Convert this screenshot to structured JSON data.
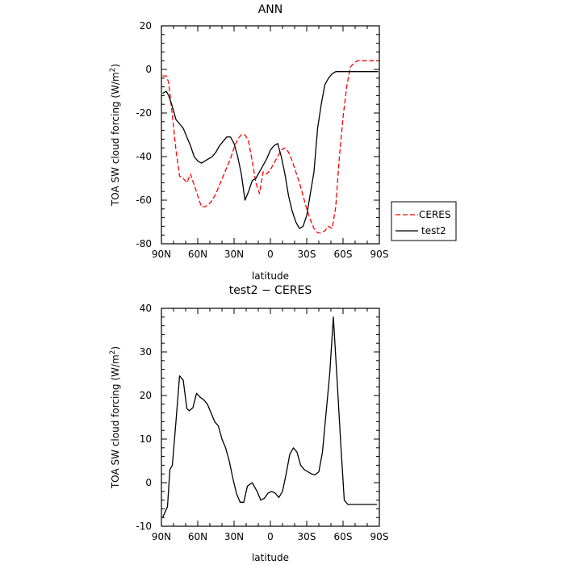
{
  "chart_data": [
    {
      "type": "line",
      "title": "ANN",
      "xlabel": "latitude",
      "ylabel": "TOA SW cloud forcing (W/m",
      "ylabel_sup": "2",
      "ylabel_end": ")",
      "xlim": [
        -90,
        90
      ],
      "ylim": [
        -80,
        20
      ],
      "xticks": [
        -90,
        -60,
        -30,
        0,
        30,
        60,
        90
      ],
      "xtick_labels": [
        "90N",
        "60N",
        "30N",
        "0",
        "30S",
        "60S",
        "90S"
      ],
      "yticks": [
        -80,
        -60,
        -40,
        -20,
        0,
        20
      ],
      "ytick_labels": [
        "-80",
        "-60",
        "-40",
        "-20",
        "0",
        "20"
      ],
      "legend_position": "outside-right",
      "series": [
        {
          "name": "CERES",
          "color": "#ff0000",
          "dash": "dashed",
          "x": [
            -89,
            -86,
            -84,
            -81,
            -78,
            -75,
            -72,
            -69,
            -66,
            -63,
            -60,
            -57,
            -54,
            -51,
            -48,
            -45,
            -42,
            -39,
            -36,
            -33,
            -30,
            -27,
            -24,
            -21,
            -18,
            -15,
            -12,
            -9,
            -6,
            -3,
            0,
            3,
            6,
            9,
            12,
            15,
            18,
            21,
            24,
            27,
            30,
            33,
            36,
            39,
            42,
            45,
            48,
            51,
            54,
            57,
            60,
            63,
            66,
            69,
            72,
            75,
            78,
            81,
            84,
            87,
            89
          ],
          "y": [
            -3,
            -3,
            -6,
            -21,
            -37,
            -49,
            -50,
            -52,
            -48,
            -53,
            -58,
            -63,
            -63,
            -62,
            -60,
            -57,
            -53,
            -49,
            -45,
            -41,
            -36,
            -32,
            -30,
            -30,
            -33,
            -42,
            -52,
            -57,
            -47,
            -48,
            -46,
            -43,
            -40,
            -37,
            -36,
            -38,
            -42,
            -47,
            -52,
            -58,
            -64,
            -69,
            -73,
            -75,
            -75,
            -74,
            -72,
            -73,
            -63,
            -40,
            -22,
            -8,
            1,
            3,
            4,
            4,
            4,
            4,
            4,
            4,
            4
          ]
        },
        {
          "name": "test2",
          "color": "#000000",
          "dash": "solid",
          "x": [
            -89,
            -86,
            -84,
            -81,
            -78,
            -75,
            -72,
            -69,
            -66,
            -63,
            -60,
            -57,
            -54,
            -51,
            -48,
            -45,
            -42,
            -39,
            -36,
            -33,
            -30,
            -27,
            -24,
            -21,
            -18,
            -15,
            -12,
            -9,
            -6,
            -3,
            0,
            3,
            6,
            9,
            12,
            15,
            18,
            21,
            24,
            27,
            30,
            33,
            36,
            39,
            42,
            45,
            48,
            51,
            54,
            57,
            60,
            63,
            66,
            69,
            72,
            75,
            78,
            81,
            84,
            87,
            89
          ],
          "y": [
            -11,
            -10,
            -12,
            -17,
            -23,
            -25,
            -27,
            -31,
            -35,
            -40,
            -42,
            -43,
            -42,
            -41,
            -40,
            -38,
            -35,
            -33,
            -31,
            -31,
            -34,
            -40,
            -48,
            -60,
            -56,
            -51,
            -50,
            -47,
            -44,
            -41,
            -37,
            -35,
            -34,
            -40,
            -48,
            -58,
            -65,
            -70,
            -73,
            -72,
            -67,
            -57,
            -47,
            -27,
            -16,
            -7,
            -4,
            -2,
            -1,
            -1,
            -1,
            -1,
            -1,
            -1,
            -1,
            -1,
            -1,
            -1,
            -1,
            -1,
            -1
          ]
        }
      ]
    },
    {
      "type": "line",
      "title": "test2 − CERES",
      "xlabel": "latitude",
      "ylabel": "TOA SW cloud forcing (W/m",
      "ylabel_sup": "2",
      "ylabel_end": ")",
      "xlim": [
        -90,
        90
      ],
      "ylim": [
        -10,
        40
      ],
      "xticks": [
        -90,
        -60,
        -30,
        0,
        30,
        60,
        90
      ],
      "xtick_labels": [
        "90N",
        "60N",
        "30N",
        "0",
        "30S",
        "60S",
        "90S"
      ],
      "yticks": [
        -10,
        0,
        10,
        20,
        30,
        40
      ],
      "ytick_labels": [
        "-10",
        "0",
        "10",
        "20",
        "30",
        "40"
      ],
      "series": [
        {
          "color": "#000000",
          "dash": "solid",
          "x": [
            -89,
            -85,
            -83,
            -81,
            -78,
            -75,
            -72,
            -69,
            -67,
            -64,
            -61,
            -58,
            -55,
            -52,
            -49,
            -46,
            -43,
            -40,
            -37,
            -34,
            -31,
            -28,
            -25,
            -22,
            -19,
            -15,
            -11,
            -8,
            -5,
            -2,
            1,
            4,
            7,
            10,
            13,
            16,
            19,
            22,
            25,
            28,
            31,
            34,
            37,
            40,
            43,
            46,
            49,
            52,
            55,
            58,
            61,
            64,
            67,
            70,
            73,
            76,
            79,
            82,
            85,
            88
          ],
          "y": [
            -8,
            -5.5,
            3,
            4,
            14,
            24.5,
            23.5,
            17,
            16.5,
            17.2,
            20.5,
            19.6,
            19,
            18,
            16,
            14,
            13,
            10,
            8,
            5,
            1,
            -2.5,
            -4.5,
            -4.5,
            -0.8,
            0,
            -2,
            -4,
            -3.6,
            -2.4,
            -2,
            -2.4,
            -3.4,
            -2,
            2,
            6.5,
            8,
            7,
            4,
            3,
            2.5,
            2,
            1.8,
            2.5,
            7,
            16,
            25,
            38,
            24,
            9.5,
            -4,
            -5,
            -5,
            -5,
            -5,
            -5,
            -5,
            -5,
            -5,
            -5
          ]
        }
      ]
    }
  ]
}
